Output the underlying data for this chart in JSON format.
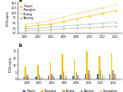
{
  "title_a": "a",
  "title_b": "b",
  "years_line": [
    2000,
    2002,
    2004,
    2006,
    2008,
    2010,
    2012,
    2014
  ],
  "line_series": {
    "Tianjin": [
      3.2,
      3.8,
      4.5,
      5.8,
      7.2,
      8.5,
      9.8,
      11.2
    ],
    "Shanghai": [
      4.5,
      5.2,
      6.5,
      8.0,
      9.5,
      11.0,
      12.5,
      14.0
    ],
    "Beijing": [
      2.2,
      2.5,
      3.0,
      3.5,
      4.0,
      4.5,
      5.0,
      5.5
    ],
    "Nanjing": [
      1.2,
      1.5,
      1.8,
      2.2,
      2.5,
      2.8,
      3.2,
      3.5
    ]
  },
  "line_colors": {
    "Tianjin": "#f5c518",
    "Shanghai": "#e8e0a0",
    "Beijing": "#a8d0c8",
    "Nanjing": "#d8b898"
  },
  "bar_years": [
    2000,
    2002,
    2004,
    2006,
    2008,
    2010,
    2012,
    2014
  ],
  "bar_categories": [
    "Tianjin",
    "Shanghai",
    "Beijing",
    "Nanjing",
    "Chongqing"
  ],
  "bar_colors": [
    "#4472c4",
    "#f5c518",
    "#c8956c",
    "#b0b0b0",
    "#e8dca0"
  ],
  "bar_data": {
    "Tianjin": [
      1.5,
      1.8,
      2.2,
      3.0,
      2.5,
      3.8,
      3.5,
      4.0
    ],
    "Shanghai": [
      9.0,
      10.0,
      12.0,
      18.0,
      14.0,
      20.0,
      17.0,
      18.5
    ],
    "Beijing": [
      2.8,
      3.2,
      4.0,
      5.5,
      5.0,
      6.5,
      6.0,
      6.5
    ],
    "Nanjing": [
      1.5,
      1.8,
      2.2,
      3.2,
      2.8,
      3.8,
      3.5,
      4.0
    ],
    "Chongqing": [
      0.5,
      0.8,
      1.0,
      1.5,
      1.2,
      1.8,
      1.5,
      1.8
    ]
  },
  "ylim_line": [
    0,
    15
  ],
  "ylim_bar": [
    0,
    22
  ],
  "ylabel_line": "tCO2/capita",
  "ylabel_bar": "tCO2/capita",
  "background_color": "#ffffff",
  "grid_color": "#e8e8e8",
  "legend_fontsize": 2.2,
  "axis_fontsize": 2.2,
  "tick_fontsize": 2.0,
  "title_fontsize": 3.5
}
